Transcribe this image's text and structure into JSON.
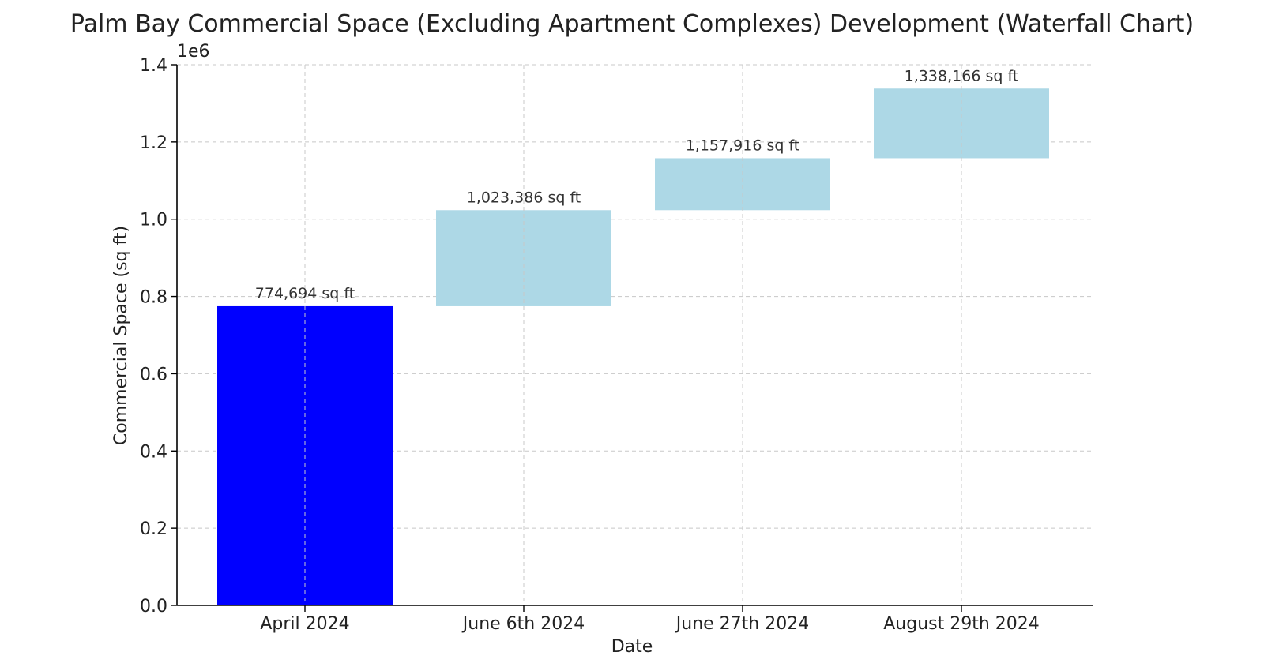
{
  "chart_data": {
    "type": "bar",
    "subtype": "waterfall",
    "title": "Palm Bay Commercial Space (Excluding Apartment Complexes) Development (Waterfall Chart)",
    "xlabel": "Date",
    "ylabel": "Commercial Space (sq ft)",
    "y_offset_label": "1e6",
    "categories": [
      "April 2024",
      "June 6th 2024",
      "June 27th 2024",
      "August 29th 2024"
    ],
    "bars": [
      {
        "category": "April 2024",
        "start": 0,
        "end": 774694,
        "label": "774,694 sq ft",
        "color": "#0000ff"
      },
      {
        "category": "June 6th 2024",
        "start": 774694,
        "end": 1023386,
        "label": "1,023,386 sq ft",
        "color": "#add8e6"
      },
      {
        "category": "June 27th 2024",
        "start": 1023386,
        "end": 1157916,
        "label": "1,157,916 sq ft",
        "color": "#add8e6"
      },
      {
        "category": "August 29th 2024",
        "start": 1157916,
        "end": 1338166,
        "label": "1,338,166 sq ft",
        "color": "#add8e6"
      }
    ],
    "ylim": [
      0,
      1400000
    ],
    "yticks": [
      0,
      200000,
      400000,
      600000,
      800000,
      1000000,
      1200000,
      1400000
    ],
    "ytick_labels": [
      "0.0",
      "0.2",
      "0.4",
      "0.6",
      "0.8",
      "1.0",
      "1.2",
      "1.4"
    ],
    "grid": true
  }
}
